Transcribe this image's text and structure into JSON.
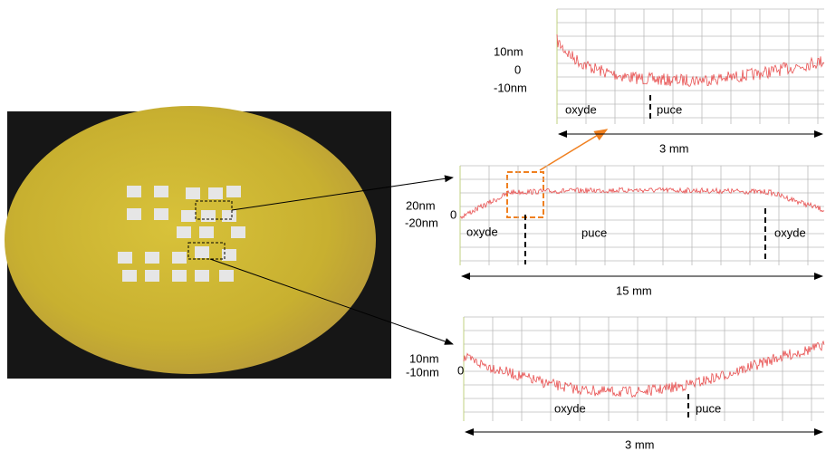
{
  "panels": [
    {
      "y_labels": [
        "10nm",
        "0",
        "-10nm"
      ],
      "annotations": [
        "oxyde",
        "puce"
      ],
      "scale": "3 mm"
    },
    {
      "y_labels": [
        "20nm",
        "0",
        "-20nm"
      ],
      "annotations": [
        "oxyde",
        "puce",
        "oxyde"
      ],
      "scale": "15 mm"
    },
    {
      "y_labels": [
        "10nm",
        "0",
        "-10nm"
      ],
      "annotations": [
        "oxyde",
        "puce"
      ],
      "scale": "3 mm"
    }
  ]
}
